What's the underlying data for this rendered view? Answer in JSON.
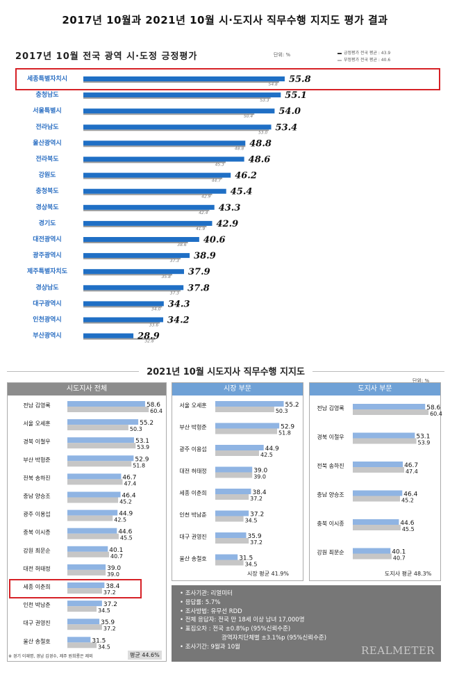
{
  "header": {
    "title": "2017년 10월과 2021년 10월 시·도지사 직무수행 지지도 평가 결과"
  },
  "top_chart": {
    "title": "2017년 10월 전국 광역 시·도정 긍정평가",
    "unit": "단위: %",
    "legend": [
      "긍정평가 전국 평균 : 43.9",
      "부정평가 전국 평균 : 40.6"
    ],
    "colors": {
      "bar": "#1f6fc5",
      "bar_dark": "#14569f",
      "secondary": "#9a9a9a",
      "label_row": "#2a6ec2"
    }
  },
  "bottom": {
    "title": "2021년 10월 시도지사 직무수행 지지도",
    "unit": "단위: %",
    "panel_a_title": "시도지사 전체",
    "panel_b_title": "시장 부문",
    "panel_c_title": "도지사 부문",
    "panel_a_avg": "평균 44.6%",
    "panel_b_avg": "시장 평균 41.9%",
    "panel_c_avg": "도지사 평균 48.3%",
    "note": "※ 경기 이재명, 경남 김경수, 제주 원희룡은 제외",
    "colors": {
      "current": "#8fb4e3",
      "previous": "#c6c6c6"
    }
  },
  "info": {
    "lines": [
      "• 조사기관: 리얼미터",
      "• 응답률: 5.7%",
      "• 조사방법: 유무선 RDD",
      "• 전체 응답자: 전국 만 18세 이상 남녀 17,000명",
      "• 표집오차 : 전국 ±0.8%p (95%신뢰수준)",
      "광역자치단체별 ±3.1%p (95%신뢰수준)",
      "• 조사기간: 9월과 10월"
    ],
    "brand": "REALMETER"
  },
  "chart_data": [
    {
      "type": "bar",
      "title": "2017년 10월 전국 광역 시·도정 긍정평가",
      "categories": [
        "세종특별자치시",
        "충청남도",
        "서울특별시",
        "전라남도",
        "울산광역시",
        "전라북도",
        "강원도",
        "충청북도",
        "경상북도",
        "경기도",
        "대전광역시",
        "광주광역시",
        "제주특별자치도",
        "경상남도",
        "대구광역시",
        "인천광역시",
        "부산광역시"
      ],
      "series": [
        {
          "values": [
            55.8,
            55.1,
            54.0,
            53.4,
            48.8,
            48.6,
            46.2,
            45.4,
            43.3,
            42.9,
            40.6,
            38.9,
            37.9,
            37.8,
            34.3,
            34.2,
            28.9
          ]
        },
        {
          "values": [
            54.8,
            53.3,
            50.4,
            53.0,
            48.8,
            45.3,
            44.7,
            42.9,
            42.4,
            41.9,
            38.6,
            37.3,
            35.8,
            37.3,
            34.0,
            33.6,
            32.8
          ]
        }
      ]
    },
    {
      "type": "bar",
      "title": "시도지사 전체",
      "categories": [
        "전남 김영록",
        "서울 오세훈",
        "경북 이철우",
        "부산 박형준",
        "전북 송하진",
        "충남 양승조",
        "광주 이용섭",
        "충북 이시종",
        "강원 최문순",
        "대전 허태정",
        "세종 이춘희",
        "인천 박남춘",
        "대구 권영진",
        "울산 송철호"
      ],
      "series": [
        {
          "values": [
            58.6,
            55.2,
            53.1,
            52.9,
            46.7,
            46.4,
            44.9,
            44.6,
            40.1,
            39.0,
            38.4,
            37.2,
            35.9,
            31.5
          ]
        },
        {
          "values": [
            60.4,
            50.3,
            53.9,
            51.8,
            47.4,
            45.2,
            42.5,
            45.5,
            40.7,
            39.0,
            37.2,
            34.5,
            37.2,
            34.5
          ]
        }
      ]
    },
    {
      "type": "bar",
      "title": "시장 부문",
      "categories": [
        "서울 오세훈",
        "부산 박형준",
        "광주 이용섭",
        "대전 허태정",
        "세종 이춘희",
        "인천 박남춘",
        "대구 권영진",
        "울산 송철호"
      ],
      "series": [
        {
          "values": [
            55.2,
            52.9,
            44.9,
            39.0,
            38.4,
            37.2,
            35.9,
            31.5
          ]
        },
        {
          "values": [
            50.3,
            51.8,
            42.5,
            39.0,
            37.2,
            34.5,
            37.2,
            34.5
          ]
        }
      ]
    },
    {
      "type": "bar",
      "title": "도지사 부문",
      "categories": [
        "전남 김영록",
        "경북 이철우",
        "전북 송하진",
        "충남 양승조",
        "충북 이시종",
        "강원 최문순"
      ],
      "series": [
        {
          "values": [
            58.6,
            53.1,
            46.7,
            46.4,
            44.6,
            40.1
          ]
        },
        {
          "values": [
            60.4,
            53.9,
            47.4,
            45.2,
            45.5,
            40.7
          ]
        }
      ]
    }
  ]
}
